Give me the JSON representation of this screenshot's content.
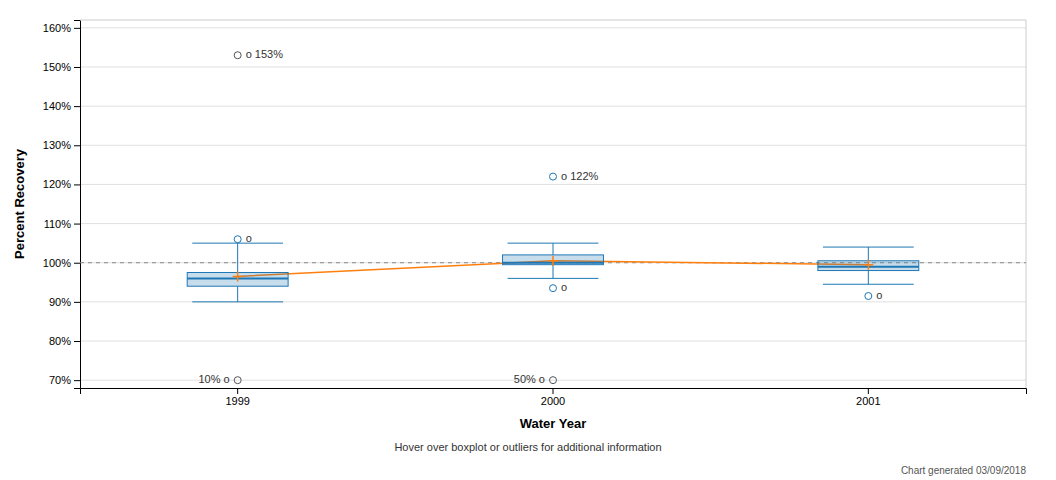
{
  "chart_data": {
    "type": "box",
    "categories": [
      "1999",
      "2000",
      "2001"
    ],
    "boxes": [
      {
        "q1": 94.0,
        "median": 96.0,
        "q3": 97.5,
        "mean": 96.5,
        "whisker_low": 90.0,
        "whisker_high": 105.0,
        "near_outliers_high": [
          106.0
        ],
        "near_outliers_low": [],
        "far_outliers_high": [
          153.0
        ],
        "far_outliers_low": [
          70.0
        ]
      },
      {
        "q1": 99.5,
        "median": 100.0,
        "q3": 102.0,
        "mean": 100.5,
        "whisker_low": 96.0,
        "whisker_high": 105.0,
        "near_outliers_high": [
          122.0
        ],
        "near_outliers_low": [
          93.5
        ],
        "far_outliers_high": [],
        "far_outliers_low": [
          70.0
        ]
      },
      {
        "q1": 98.0,
        "median": 99.0,
        "q3": 100.5,
        "mean": 99.5,
        "whisker_low": 94.5,
        "whisker_high": 104.0,
        "near_outliers_high": [],
        "near_outliers_low": [
          91.5
        ],
        "far_outliers_high": [],
        "far_outliers_low": []
      }
    ],
    "reference_line": 100,
    "annotations": [
      {
        "text": "o 153%",
        "category": "1999",
        "y": 153.0
      },
      {
        "text": "o",
        "category": "1999",
        "y": 106.0
      },
      {
        "text": "o 122%",
        "category": "2000",
        "y": 122.0
      },
      {
        "text": "o",
        "category": "2000",
        "y": 93.5
      },
      {
        "text": "10% o",
        "category": "1999",
        "y": 70.0
      },
      {
        "text": "50% o",
        "category": "2000",
        "y": 70.0
      },
      {
        "text": "o",
        "category": "2001",
        "y": 91.5
      }
    ],
    "ylim": [
      68.0,
      162.0
    ],
    "yticks": [
      {
        "value": 70,
        "label": "70%"
      },
      {
        "value": 80,
        "label": "80%"
      },
      {
        "value": 90,
        "label": "90%"
      },
      {
        "value": 100,
        "label": "100%"
      },
      {
        "value": 110,
        "label": "110%"
      },
      {
        "value": 120,
        "label": "120%"
      },
      {
        "value": 130,
        "label": "130%"
      },
      {
        "value": 140,
        "label": "140%"
      },
      {
        "value": 150,
        "label": "150%"
      },
      {
        "value": 160,
        "label": "160%"
      }
    ],
    "xlabel": "Water Year",
    "ylabel": "Percent Recovery",
    "subtitle": "Hover over boxplot or outliers for additional information",
    "footnote": "Chart generated 03/09/2018",
    "grid": true
  }
}
